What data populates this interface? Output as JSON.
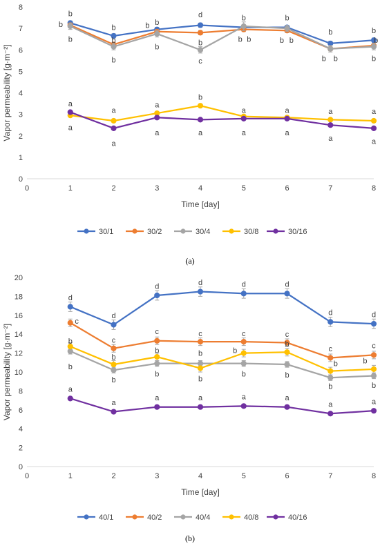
{
  "chart_data": [
    {
      "type": "line",
      "panel_label": "(a)",
      "xlabel": "Time [day]",
      "ylabel": "Vapor permeability [g·m⁻²]",
      "xlim": [
        0,
        8
      ],
      "ylim": [
        0,
        8
      ],
      "xticks": [
        0,
        1,
        2,
        3,
        4,
        5,
        6,
        7,
        8
      ],
      "yticks": [
        0,
        1,
        2,
        3,
        4,
        5,
        6,
        7,
        8
      ],
      "grid": false,
      "legend": "bottom",
      "x": [
        1,
        2,
        3,
        4,
        5,
        6,
        7,
        8
      ],
      "series": [
        {
          "name": "30/1",
          "color": "#4472C4",
          "values": [
            7.25,
            6.65,
            6.95,
            7.15,
            7.05,
            7.05,
            6.3,
            6.45
          ],
          "err": [
            0.1,
            0.1,
            0.1,
            0.1,
            0.1,
            0.1,
            0.1,
            0.1
          ]
        },
        {
          "name": "30/2",
          "color": "#ED7D31",
          "values": [
            7.15,
            6.25,
            6.85,
            6.8,
            6.95,
            6.9,
            6.05,
            6.2
          ],
          "err": [
            0.1,
            0.1,
            0.1,
            0.1,
            0.1,
            0.1,
            0.1,
            0.1
          ]
        },
        {
          "name": "30/4",
          "color": "#A5A5A5",
          "values": [
            7.1,
            6.15,
            6.75,
            6.0,
            7.1,
            7.0,
            6.05,
            6.15
          ],
          "err": [
            0.15,
            0.15,
            0.15,
            0.15,
            0.2,
            0.15,
            0.15,
            0.15
          ]
        },
        {
          "name": "30/8",
          "color": "#FFC000",
          "values": [
            2.95,
            2.7,
            3.05,
            3.4,
            2.9,
            2.85,
            2.75,
            2.7
          ],
          "err": [
            0.05,
            0.05,
            0.05,
            0.05,
            0.05,
            0.05,
            0.05,
            0.05
          ]
        },
        {
          "name": "30/16",
          "color": "#7030A0",
          "values": [
            3.1,
            2.35,
            2.85,
            2.75,
            2.8,
            2.8,
            2.5,
            2.35
          ],
          "err": [
            0.05,
            0.05,
            0.05,
            0.05,
            0.05,
            0.05,
            0.05,
            0.05
          ]
        }
      ],
      "annotations": [
        {
          "text": "b",
          "x": 1.0,
          "y": 7.7
        },
        {
          "text": "b",
          "x": 0.78,
          "y": 7.2
        },
        {
          "text": "b",
          "x": 1.0,
          "y": 6.5
        },
        {
          "text": "b",
          "x": 2.0,
          "y": 7.05
        },
        {
          "text": "b",
          "x": 2.0,
          "y": 6.45
        },
        {
          "text": "b",
          "x": 2.0,
          "y": 5.55
        },
        {
          "text": "b",
          "x": 2.78,
          "y": 7.15
        },
        {
          "text": "b",
          "x": 3.0,
          "y": 7.3
        },
        {
          "text": "b",
          "x": 3.0,
          "y": 6.15
        },
        {
          "text": "d",
          "x": 4.0,
          "y": 7.65
        },
        {
          "text": "b",
          "x": 4.0,
          "y": 6.35
        },
        {
          "text": "c",
          "x": 4.0,
          "y": 5.5
        },
        {
          "text": "b",
          "x": 5.0,
          "y": 7.5
        },
        {
          "text": "b",
          "x": 4.92,
          "y": 6.5
        },
        {
          "text": "b",
          "x": 5.12,
          "y": 6.5
        },
        {
          "text": "b",
          "x": 6.0,
          "y": 7.5
        },
        {
          "text": "b",
          "x": 5.88,
          "y": 6.45
        },
        {
          "text": "b",
          "x": 6.1,
          "y": 6.45
        },
        {
          "text": "b",
          "x": 7.0,
          "y": 6.85
        },
        {
          "text": "b",
          "x": 6.85,
          "y": 5.6
        },
        {
          "text": "b",
          "x": 7.12,
          "y": 5.6
        },
        {
          "text": "b",
          "x": 8.0,
          "y": 6.9
        },
        {
          "text": "b",
          "x": 8.05,
          "y": 6.45
        },
        {
          "text": "b",
          "x": 8.0,
          "y": 5.6
        },
        {
          "text": "a",
          "x": 1.0,
          "y": 3.5
        },
        {
          "text": "a",
          "x": 1.0,
          "y": 2.4
        },
        {
          "text": "a",
          "x": 2.0,
          "y": 3.2
        },
        {
          "text": "a",
          "x": 2.0,
          "y": 1.65
        },
        {
          "text": "a",
          "x": 3.0,
          "y": 3.45
        },
        {
          "text": "a",
          "x": 3.0,
          "y": 2.15
        },
        {
          "text": "b",
          "x": 4.0,
          "y": 3.8
        },
        {
          "text": "a",
          "x": 4.0,
          "y": 2.15
        },
        {
          "text": "a",
          "x": 5.0,
          "y": 3.2
        },
        {
          "text": "a",
          "x": 5.0,
          "y": 2.15
        },
        {
          "text": "a",
          "x": 6.0,
          "y": 3.2
        },
        {
          "text": "a",
          "x": 6.0,
          "y": 2.15
        },
        {
          "text": "a",
          "x": 7.0,
          "y": 3.15
        },
        {
          "text": "a",
          "x": 7.0,
          "y": 1.9
        },
        {
          "text": "a",
          "x": 8.0,
          "y": 3.15
        },
        {
          "text": "a",
          "x": 8.0,
          "y": 1.75
        }
      ]
    },
    {
      "type": "line",
      "panel_label": "(b)",
      "xlabel": "Time [day]",
      "ylabel": "Vapor permeability [g·m⁻²]",
      "xlim": [
        0,
        8
      ],
      "ylim": [
        0,
        20
      ],
      "xticks": [
        0,
        1,
        2,
        3,
        4,
        5,
        6,
        7,
        8
      ],
      "yticks": [
        0,
        2,
        4,
        6,
        8,
        10,
        12,
        14,
        16,
        18,
        20
      ],
      "grid": false,
      "legend": "bottom",
      "x": [
        1,
        2,
        3,
        4,
        5,
        6,
        7,
        8
      ],
      "series": [
        {
          "name": "40/1",
          "color": "#4472C4",
          "values": [
            16.9,
            15.0,
            18.1,
            18.5,
            18.3,
            18.3,
            15.3,
            15.1
          ],
          "err": [
            0.5,
            0.5,
            0.5,
            0.5,
            0.5,
            0.5,
            0.5,
            0.5
          ]
        },
        {
          "name": "40/2",
          "color": "#ED7D31",
          "values": [
            15.2,
            12.5,
            13.3,
            13.2,
            13.2,
            13.1,
            11.5,
            11.8
          ],
          "err": [
            0.4,
            0.4,
            0.4,
            0.4,
            0.4,
            0.4,
            0.4,
            0.4
          ]
        },
        {
          "name": "40/4",
          "color": "#A5A5A5",
          "values": [
            12.2,
            10.2,
            10.9,
            10.9,
            10.9,
            10.8,
            9.4,
            9.6
          ],
          "err": [
            0.3,
            0.3,
            0.3,
            0.3,
            0.3,
            0.3,
            0.3,
            0.3
          ]
        },
        {
          "name": "40/8",
          "color": "#FFC000",
          "values": [
            12.7,
            10.8,
            11.6,
            10.4,
            12.0,
            12.1,
            10.1,
            10.3
          ],
          "err": [
            0.4,
            0.4,
            0.4,
            0.4,
            0.4,
            0.4,
            0.4,
            0.4
          ]
        },
        {
          "name": "40/16",
          "color": "#7030A0",
          "values": [
            7.2,
            5.8,
            6.3,
            6.3,
            6.4,
            6.3,
            5.6,
            5.9
          ],
          "err": [
            0.1,
            0.1,
            0.1,
            0.1,
            0.1,
            0.1,
            0.1,
            0.1
          ]
        }
      ],
      "annotations": [
        {
          "text": "d",
          "x": 1.0,
          "y": 17.9
        },
        {
          "text": "c",
          "x": 1.15,
          "y": 15.4
        },
        {
          "text": "b",
          "x": 1.0,
          "y": 13.3
        },
        {
          "text": "b",
          "x": 1.0,
          "y": 10.6
        },
        {
          "text": "d",
          "x": 2.0,
          "y": 16.0
        },
        {
          "text": "c",
          "x": 2.0,
          "y": 13.4
        },
        {
          "text": "b",
          "x": 2.0,
          "y": 11.6
        },
        {
          "text": "b",
          "x": 2.0,
          "y": 9.2
        },
        {
          "text": "d",
          "x": 3.0,
          "y": 19.1
        },
        {
          "text": "c",
          "x": 3.0,
          "y": 14.3
        },
        {
          "text": "b",
          "x": 3.0,
          "y": 12.3
        },
        {
          "text": "b",
          "x": 3.0,
          "y": 9.8
        },
        {
          "text": "d",
          "x": 4.0,
          "y": 19.5
        },
        {
          "text": "c",
          "x": 4.0,
          "y": 14.1
        },
        {
          "text": "b",
          "x": 4.0,
          "y": 12.0
        },
        {
          "text": "b",
          "x": 4.0,
          "y": 9.3
        },
        {
          "text": "d",
          "x": 5.0,
          "y": 19.3
        },
        {
          "text": "c",
          "x": 5.0,
          "y": 14.1
        },
        {
          "text": "b",
          "x": 4.8,
          "y": 12.3
        },
        {
          "text": "b",
          "x": 5.0,
          "y": 9.8
        },
        {
          "text": "d",
          "x": 6.0,
          "y": 19.3
        },
        {
          "text": "c",
          "x": 6.0,
          "y": 14.0
        },
        {
          "text": "b",
          "x": 6.0,
          "y": 13.0
        },
        {
          "text": "b",
          "x": 6.0,
          "y": 9.7
        },
        {
          "text": "d",
          "x": 7.0,
          "y": 16.3
        },
        {
          "text": "c",
          "x": 7.0,
          "y": 12.5
        },
        {
          "text": "b",
          "x": 7.12,
          "y": 10.9
        },
        {
          "text": "b",
          "x": 7.0,
          "y": 8.5
        },
        {
          "text": "d",
          "x": 8.0,
          "y": 16.1
        },
        {
          "text": "c",
          "x": 8.0,
          "y": 12.8
        },
        {
          "text": "b",
          "x": 7.8,
          "y": 11.2
        },
        {
          "text": "b",
          "x": 8.0,
          "y": 8.6
        },
        {
          "text": "a",
          "x": 1.0,
          "y": 8.2
        },
        {
          "text": "a",
          "x": 2.0,
          "y": 6.8
        },
        {
          "text": "a",
          "x": 3.0,
          "y": 7.3
        },
        {
          "text": "a",
          "x": 4.0,
          "y": 7.3
        },
        {
          "text": "a",
          "x": 5.0,
          "y": 7.4
        },
        {
          "text": "a",
          "x": 6.0,
          "y": 7.3
        },
        {
          "text": "a",
          "x": 7.0,
          "y": 6.6
        },
        {
          "text": "a",
          "x": 8.0,
          "y": 6.9
        }
      ]
    }
  ]
}
